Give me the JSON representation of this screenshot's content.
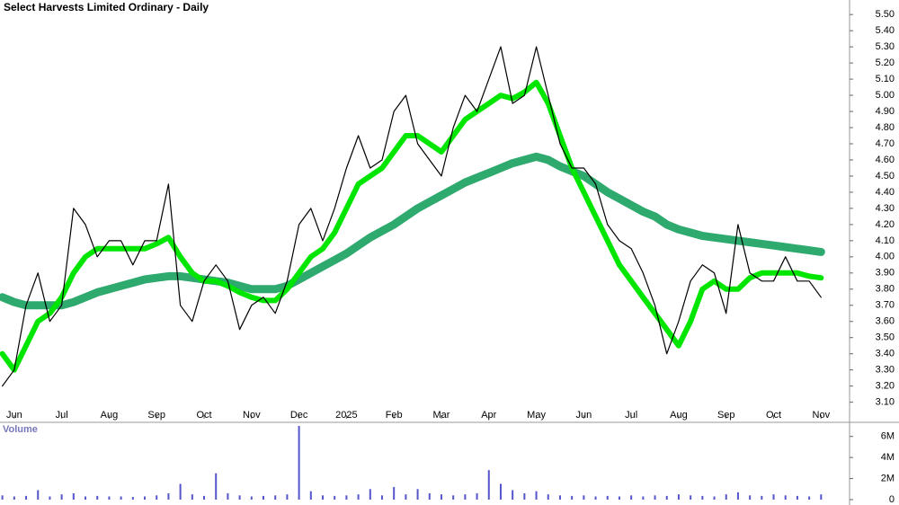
{
  "chart_data": [
    {
      "type": "line",
      "title": "Select Harvests Limited Ordinary - Daily",
      "x": [
        -0.25,
        0,
        0.25,
        0.5,
        0.75,
        1,
        1.25,
        1.5,
        1.75,
        2,
        2.25,
        2.5,
        2.75,
        3,
        3.25,
        3.5,
        3.75,
        4,
        4.25,
        4.5,
        4.75,
        5,
        5.25,
        5.5,
        5.75,
        6,
        6.25,
        6.5,
        6.75,
        7,
        7.25,
        7.5,
        7.75,
        8,
        8.25,
        8.5,
        8.75,
        9,
        9.25,
        9.5,
        9.75,
        10,
        10.25,
        10.5,
        10.75,
        11,
        11.25,
        11.5,
        11.75,
        12,
        12.25,
        12.5,
        12.75,
        13,
        13.25,
        13.5,
        13.75,
        14,
        14.25,
        14.5,
        14.75,
        15,
        15.25,
        15.5,
        15.75,
        16,
        16.25,
        16.5,
        16.75,
        17
      ],
      "xlim": [
        -0.3,
        17.6
      ],
      "xticks": [
        {
          "value": 0,
          "label": "Jun"
        },
        {
          "value": 1,
          "label": "Jul"
        },
        {
          "value": 2,
          "label": "Aug"
        },
        {
          "value": 3,
          "label": "Sep"
        },
        {
          "value": 4,
          "label": "Oct"
        },
        {
          "value": 5,
          "label": "Nov"
        },
        {
          "value": 6,
          "label": "Dec"
        },
        {
          "value": 7,
          "label": "2025"
        },
        {
          "value": 8,
          "label": "Feb"
        },
        {
          "value": 9,
          "label": "Mar"
        },
        {
          "value": 10,
          "label": "Apr"
        },
        {
          "value": 11,
          "label": "May"
        },
        {
          "value": 12,
          "label": "Jun"
        },
        {
          "value": 13,
          "label": "Jul"
        },
        {
          "value": 14,
          "label": "Aug"
        },
        {
          "value": 15,
          "label": "Sep"
        },
        {
          "value": 16,
          "label": "Oct"
        },
        {
          "value": 17,
          "label": "Nov"
        }
      ],
      "ylim": [
        3.02,
        5.59
      ],
      "yticks": [
        {
          "value": 3.1,
          "label": "3.10"
        },
        {
          "value": 3.2,
          "label": "3.20"
        },
        {
          "value": 3.3,
          "label": "3.30"
        },
        {
          "value": 3.4,
          "label": "3.40"
        },
        {
          "value": 3.5,
          "label": "3.50"
        },
        {
          "value": 3.6,
          "label": "3.60"
        },
        {
          "value": 3.7,
          "label": "3.70"
        },
        {
          "value": 3.8,
          "label": "3.80"
        },
        {
          "value": 3.9,
          "label": "3.90"
        },
        {
          "value": 4.0,
          "label": "4.00"
        },
        {
          "value": 4.1,
          "label": "4.10"
        },
        {
          "value": 4.2,
          "label": "4.20"
        },
        {
          "value": 4.3,
          "label": "4.30"
        },
        {
          "value": 4.4,
          "label": "4.40"
        },
        {
          "value": 4.5,
          "label": "4.50"
        },
        {
          "value": 4.6,
          "label": "4.60"
        },
        {
          "value": 4.7,
          "label": "4.70"
        },
        {
          "value": 4.8,
          "label": "4.80"
        },
        {
          "value": 4.9,
          "label": "4.90"
        },
        {
          "value": 5.0,
          "label": "5.00"
        },
        {
          "value": 5.1,
          "label": "5.10"
        },
        {
          "value": 5.2,
          "label": "5.20"
        },
        {
          "value": 5.3,
          "label": "5.30"
        },
        {
          "value": 5.4,
          "label": "5.40"
        },
        {
          "value": 5.5,
          "label": "5.50"
        }
      ],
      "series": [
        {
          "color": "#2eaa6e",
          "width": 9,
          "values": [
            3.75,
            3.72,
            3.7,
            3.7,
            3.7,
            3.7,
            3.72,
            3.75,
            3.78,
            3.8,
            3.82,
            3.84,
            3.86,
            3.87,
            3.88,
            3.88,
            3.87,
            3.86,
            3.85,
            3.84,
            3.82,
            3.8,
            3.8,
            3.8,
            3.82,
            3.86,
            3.9,
            3.94,
            3.98,
            4.02,
            4.07,
            4.12,
            4.16,
            4.2,
            4.25,
            4.3,
            4.34,
            4.38,
            4.42,
            4.46,
            4.49,
            4.52,
            4.55,
            4.58,
            4.6,
            4.62,
            4.6,
            4.56,
            4.53,
            4.5,
            4.45,
            4.4,
            4.36,
            4.32,
            4.28,
            4.25,
            4.2,
            4.17,
            4.15,
            4.13,
            4.12,
            4.11,
            4.1,
            4.09,
            4.08,
            4.07,
            4.06,
            4.05,
            4.04,
            4.03
          ]
        },
        {
          "color": "#00e600",
          "width": 6,
          "values": [
            3.4,
            3.3,
            3.45,
            3.6,
            3.65,
            3.75,
            3.9,
            4.0,
            4.05,
            4.05,
            4.05,
            4.05,
            4.05,
            4.08,
            4.12,
            4.0,
            3.9,
            3.85,
            3.85,
            3.82,
            3.78,
            3.75,
            3.73,
            3.73,
            3.8,
            3.9,
            4.0,
            4.05,
            4.15,
            4.3,
            4.45,
            4.5,
            4.55,
            4.65,
            4.75,
            4.75,
            4.7,
            4.65,
            4.75,
            4.85,
            4.9,
            4.95,
            5.0,
            4.98,
            5.02,
            5.08,
            4.95,
            4.75,
            4.55,
            4.4,
            4.25,
            4.1,
            3.95,
            3.85,
            3.75,
            3.65,
            3.55,
            3.45,
            3.6,
            3.8,
            3.85,
            3.8,
            3.8,
            3.87,
            3.9,
            3.9,
            3.9,
            3.9,
            3.88,
            3.87
          ]
        },
        {
          "color": "#000000",
          "width": 1.2,
          "values": [
            3.2,
            3.3,
            3.7,
            3.9,
            3.6,
            3.7,
            4.3,
            4.2,
            4.0,
            4.1,
            4.1,
            3.95,
            4.1,
            4.1,
            4.45,
            3.7,
            3.6,
            3.85,
            3.95,
            3.85,
            3.55,
            3.7,
            3.75,
            3.65,
            3.85,
            4.2,
            4.3,
            4.1,
            4.3,
            4.55,
            4.75,
            4.55,
            4.6,
            4.9,
            5.0,
            4.7,
            4.6,
            4.5,
            4.8,
            5.0,
            4.9,
            5.1,
            5.3,
            4.95,
            5.0,
            5.3,
            5.0,
            4.7,
            4.55,
            4.55,
            4.45,
            4.2,
            4.1,
            4.05,
            3.9,
            3.7,
            3.4,
            3.6,
            3.85,
            3.95,
            3.9,
            3.65,
            4.2,
            3.9,
            3.85,
            3.85,
            4.0,
            3.85,
            3.85,
            3.75
          ]
        }
      ]
    },
    {
      "type": "bar",
      "title": "Volume",
      "color": "#5555cc",
      "x": [
        -0.25,
        0,
        0.25,
        0.5,
        0.75,
        1,
        1.25,
        1.5,
        1.75,
        2,
        2.25,
        2.5,
        2.75,
        3,
        3.25,
        3.5,
        3.75,
        4,
        4.25,
        4.5,
        4.75,
        5,
        5.25,
        5.5,
        5.75,
        6,
        6.25,
        6.5,
        6.75,
        7,
        7.25,
        7.5,
        7.75,
        8,
        8.25,
        8.5,
        8.75,
        9,
        9.25,
        9.5,
        9.75,
        10,
        10.25,
        10.5,
        10.75,
        11,
        11.25,
        11.5,
        11.75,
        12,
        12.25,
        12.5,
        12.75,
        13,
        13.25,
        13.5,
        13.75,
        14,
        14.25,
        14.5,
        14.75,
        15,
        15.25,
        15.5,
        15.75,
        16,
        16.25,
        16.5,
        16.75,
        17
      ],
      "xlim": [
        -0.3,
        17.6
      ],
      "ylim": [
        0,
        7000000
      ],
      "yticks": [
        0,
        {
          "value": 2000000,
          "label": "2M"
        },
        {
          "value": 4000000,
          "label": "4M"
        },
        {
          "value": 6000000,
          "label": "6M"
        }
      ],
      "values": [
        400000,
        300000,
        350000,
        900000,
        300000,
        500000,
        600000,
        300000,
        350000,
        300000,
        300000,
        250000,
        300000,
        400000,
        600000,
        1500000,
        500000,
        350000,
        2500000,
        600000,
        400000,
        300000,
        350000,
        400000,
        500000,
        7000000,
        800000,
        400000,
        350000,
        400000,
        500000,
        1000000,
        400000,
        1200000,
        500000,
        1000000,
        600000,
        500000,
        400000,
        500000,
        600000,
        2800000,
        1500000,
        900000,
        600000,
        800000,
        500000,
        400000,
        350000,
        400000,
        300000,
        350000,
        300000,
        400000,
        300000,
        400000,
        350000,
        500000,
        400000,
        350000,
        300000,
        500000,
        700000,
        400000,
        350000,
        500000,
        400000,
        350000,
        300000,
        500000
      ]
    }
  ]
}
